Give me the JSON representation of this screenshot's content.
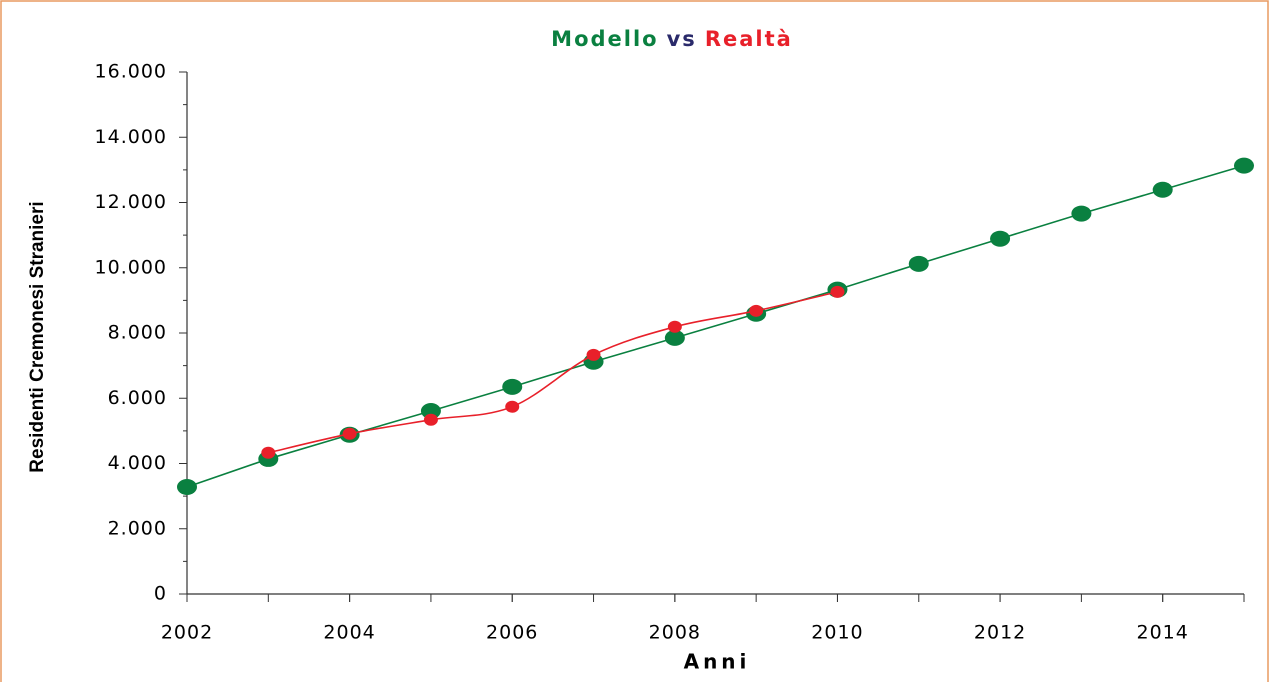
{
  "chart_data": {
    "type": "line",
    "title_parts": [
      "Modello",
      "vs",
      "Realtà"
    ],
    "title_colors": [
      "#0a8040",
      "#2a2a6a",
      "#e8202a"
    ],
    "x_label": "Anni",
    "y_label": "Residenti Cremonesi Stranieri",
    "x": [
      2002,
      2003,
      2004,
      2005,
      2006,
      2007,
      2008,
      2009,
      2010,
      2011,
      2012,
      2013,
      2014,
      2015
    ],
    "series": [
      {
        "name": "Modello",
        "color": "#0a8040",
        "smooth": false,
        "values": [
          3280,
          4140,
          4880,
          5610,
          6350,
          7120,
          7850,
          8590,
          9330,
          10120,
          10890,
          11660,
          12390,
          13130
        ]
      },
      {
        "name": "Realtà",
        "color": "#e8202a",
        "smooth": true,
        "values": [
          null,
          4330,
          4910,
          5340,
          5740,
          7330,
          8190,
          8680,
          9260,
          null,
          null,
          null,
          null,
          null
        ]
      }
    ],
    "xlim": [
      2002,
      2015
    ],
    "xticks": [
      2002,
      2004,
      2006,
      2008,
      2010,
      2012,
      2014
    ],
    "ylim": [
      0,
      16000
    ],
    "yticks": [
      0,
      {
        "value": 2000,
        "label": "2.000"
      },
      {
        "value": 4000,
        "label": "4.000"
      },
      {
        "value": 6000,
        "label": "6.000"
      },
      {
        "value": 8000,
        "label": "8.000"
      },
      {
        "value": 10000,
        "label": "10.000"
      },
      {
        "value": 12000,
        "label": "12.000"
      },
      {
        "value": 14000,
        "label": "14.000"
      },
      {
        "value": 16000,
        "label": "16.000"
      }
    ],
    "grid": false
  }
}
